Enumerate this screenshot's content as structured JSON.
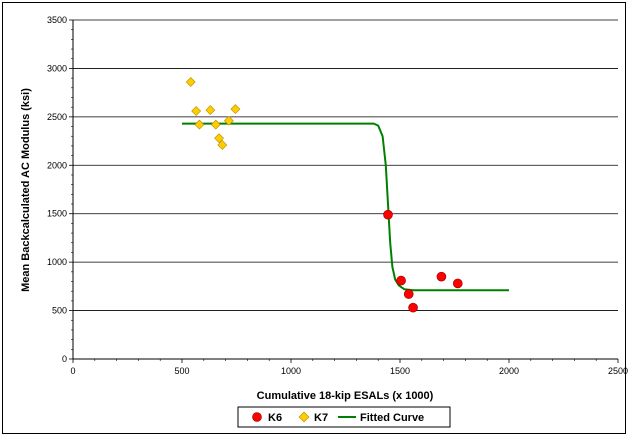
{
  "chart_data": {
    "type": "scatter",
    "xlabel": "Cumulative 18-kip ESALs (x 1000)",
    "ylabel": "Mean Backcalculated AC Modulus (ksi)",
    "xlim": [
      0,
      2500
    ],
    "ylim": [
      0,
      3500
    ],
    "x_ticks": [
      "0",
      "500",
      "1000",
      "1500",
      "2000",
      "2500"
    ],
    "y_ticks": [
      "0",
      "500",
      "1000",
      "1500",
      "2000",
      "2500",
      "3000",
      "3500"
    ],
    "grid": "horizontal",
    "legend_position": "bottom",
    "series": [
      {
        "name": "K6",
        "marker": "circle",
        "color": "#ff0000",
        "points": [
          [
            1445,
            1490
          ],
          [
            1505,
            810
          ],
          [
            1540,
            670
          ],
          [
            1560,
            530
          ],
          [
            1690,
            850
          ],
          [
            1765,
            780
          ]
        ]
      },
      {
        "name": "K7",
        "marker": "diamond",
        "color": "#ffcc00",
        "points": [
          [
            540,
            2860
          ],
          [
            565,
            2560
          ],
          [
            580,
            2420
          ],
          [
            630,
            2570
          ],
          [
            655,
            2420
          ],
          [
            670,
            2280
          ],
          [
            685,
            2210
          ],
          [
            715,
            2460
          ],
          [
            745,
            2580
          ]
        ]
      },
      {
        "name": "Fitted Curve",
        "marker": "line",
        "color": "#008000",
        "points": [
          [
            500,
            2430
          ],
          [
            1380,
            2430
          ],
          [
            1400,
            2410
          ],
          [
            1420,
            2300
          ],
          [
            1435,
            2000
          ],
          [
            1445,
            1600
          ],
          [
            1455,
            1200
          ],
          [
            1465,
            950
          ],
          [
            1478,
            820
          ],
          [
            1495,
            760
          ],
          [
            1520,
            720
          ],
          [
            1560,
            710
          ],
          [
            2000,
            710
          ]
        ]
      }
    ]
  }
}
